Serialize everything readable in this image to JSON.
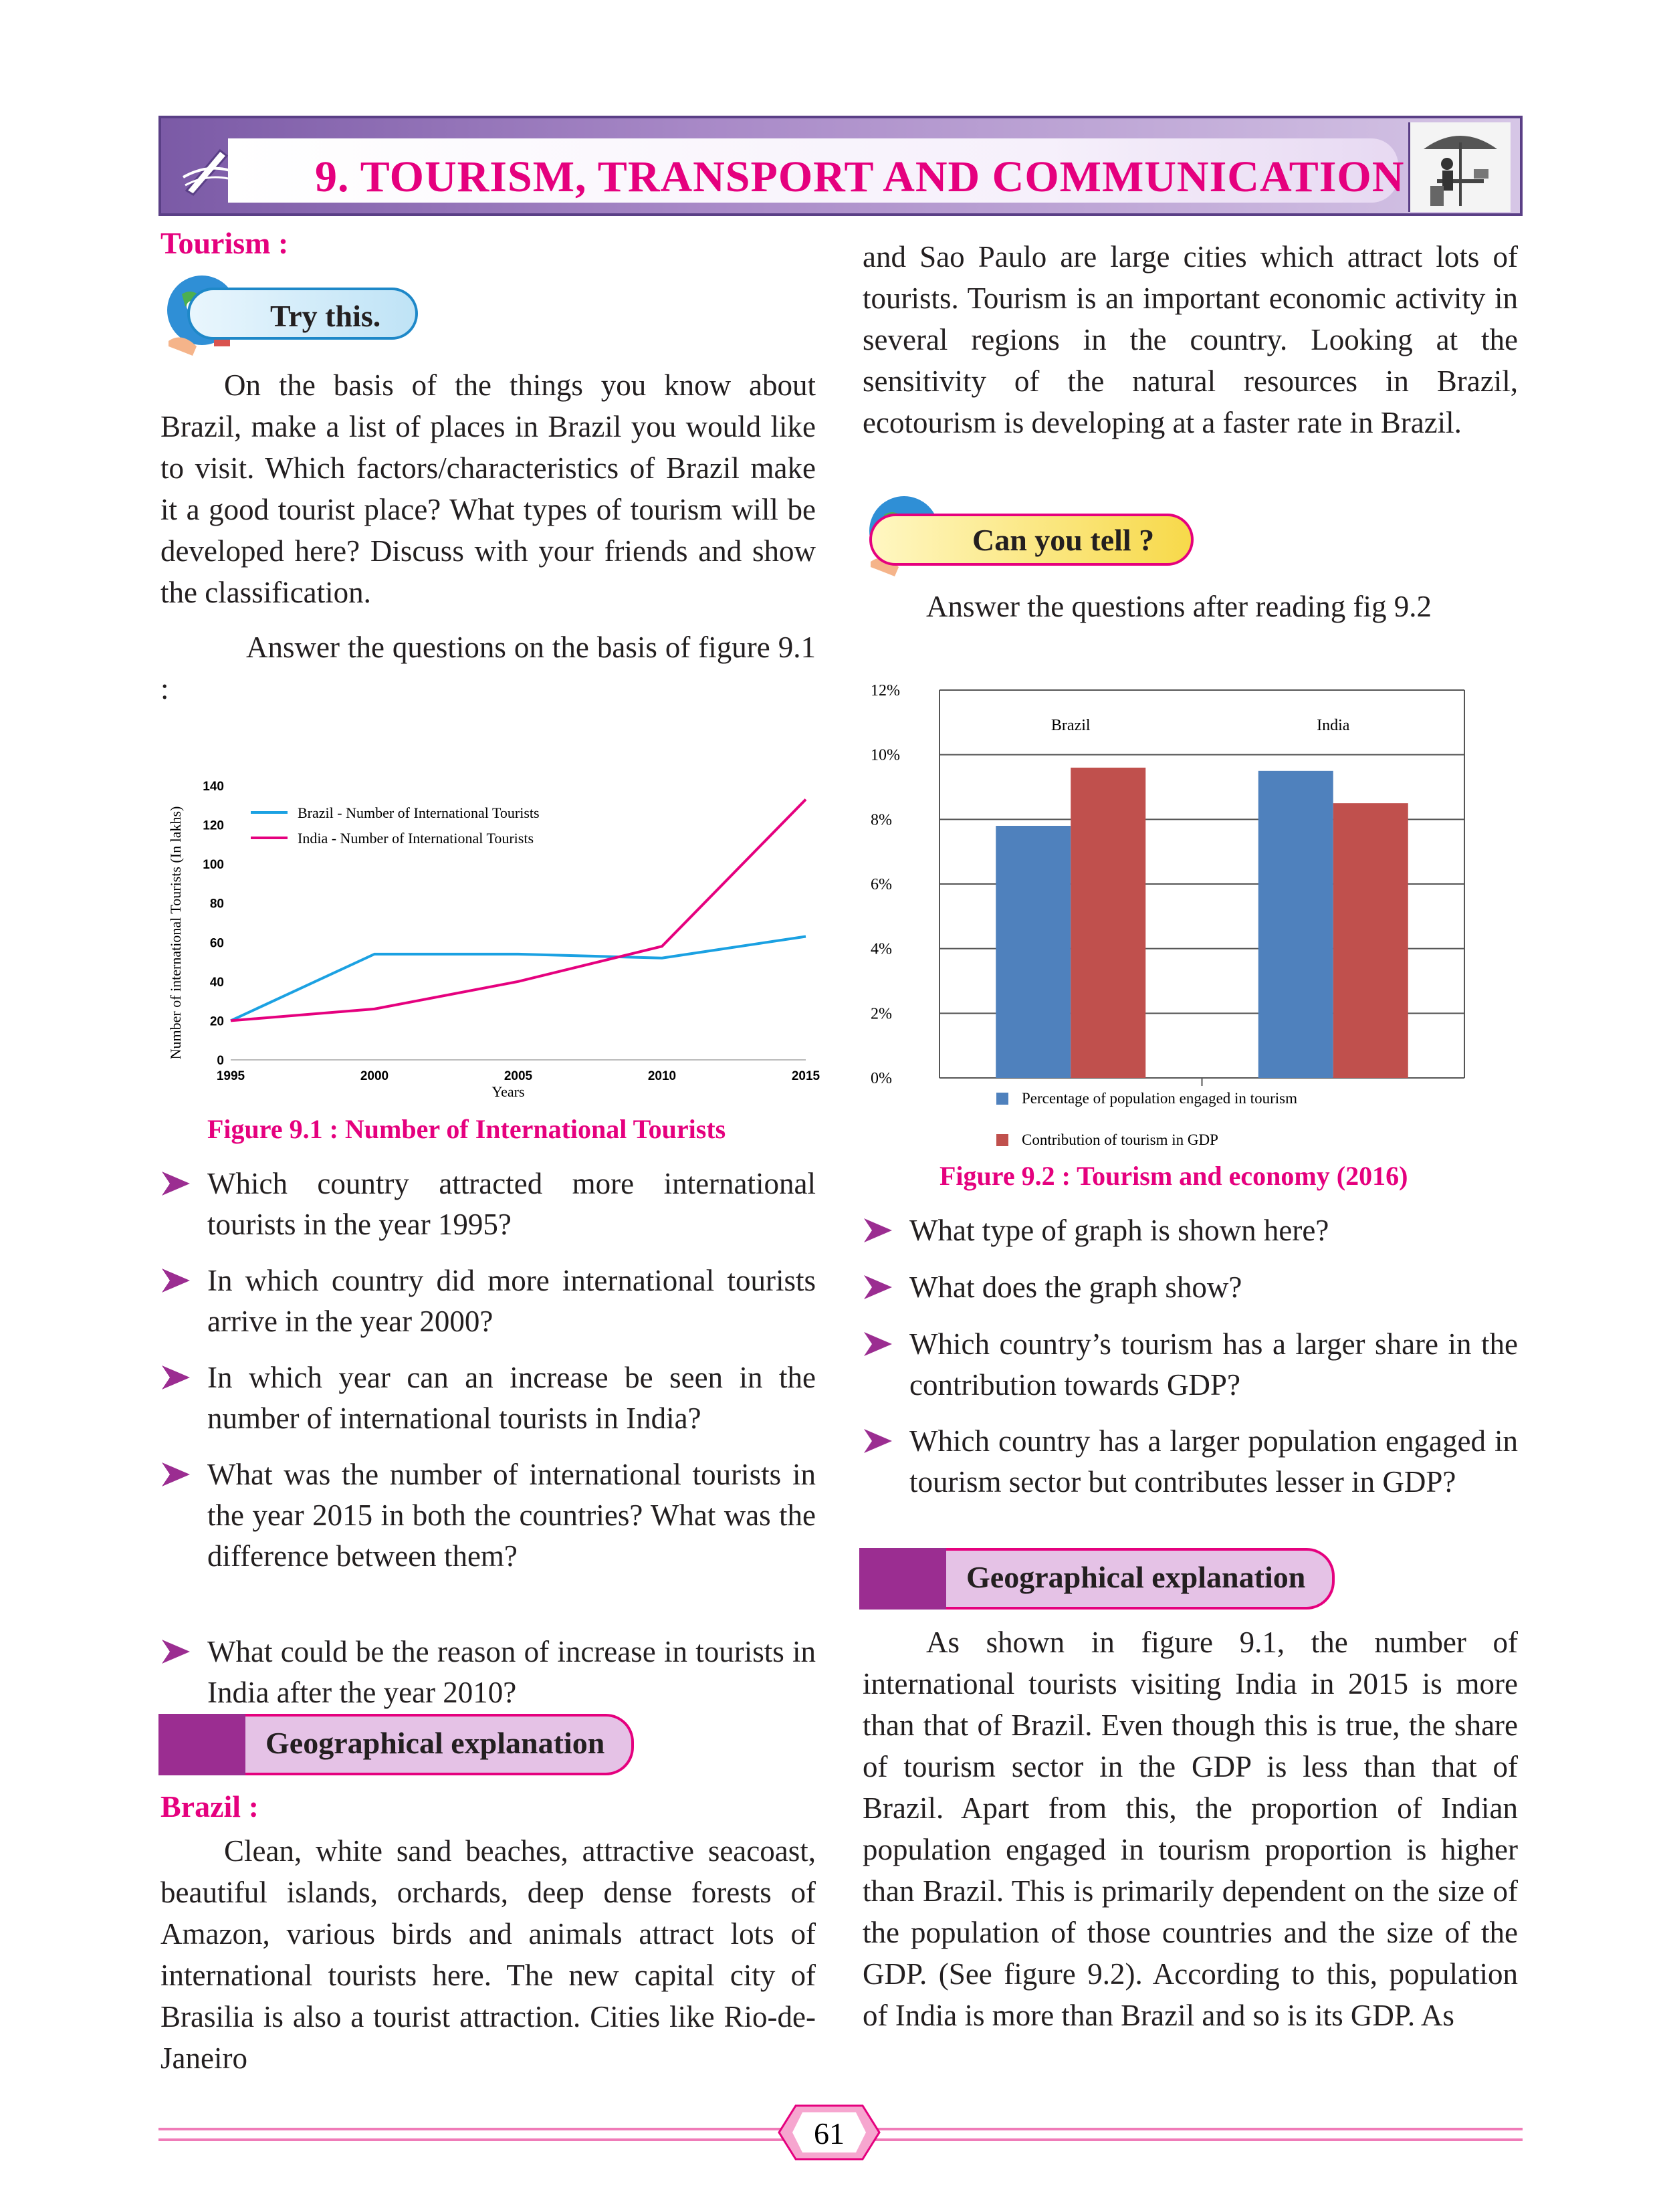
{
  "header": {
    "chapter_title": "9. TOURISM, TRANSPORT AND COMMUNICATION"
  },
  "left": {
    "tourism_heading": "Tourism :",
    "try_this": "Try this.",
    "try_para": "On the basis of the things you know about Brazil, make a list of places in Brazil you would like to visit. Which factors/characteristics of Brazil make it a good tourist place? What types of tourism will be developed here? Discuss with your friends and show the classification.",
    "answer_para": "Answer the questions on the basis of figure 9.1 :",
    "figure_caption": "Figure 9.1 : Number of International Tourists",
    "questions": [
      "Which country attracted more international tourists in the year 1995?",
      "In which country did more international tourists arrive in the year 2000?",
      "In which year can an increase be seen in the number of international tourists in India?",
      "What was the number of international tourists in the year 2015 in both the countries? What was the difference between them?",
      "What could be the reason of increase in tourists in India after the year 2010?"
    ],
    "geo_heading": "Geographical explanation",
    "brazil_heading": "Brazil :",
    "brazil_para": "Clean, white sand beaches, attractive seacoast, beautiful islands, orchards, deep dense forests of Amazon, various birds and animals attract lots of international tourists here. The new capital city of Brasilia is also a tourist attraction. Cities like Rio-de-Janeiro"
  },
  "right": {
    "cont_para": "and Sao Paulo are large cities which attract lots of tourists. Tourism is an important economic activity in several regions in the country. Looking at the sensitivity of the natural resources in Brazil, ecotourism is developing at a faster rate in Brazil.",
    "can_you_tell": "Can you tell ?",
    "answer_para": "Answer the questions after reading fig 9.2",
    "figure_caption": "Figure 9.2 : Tourism and economy (2016)",
    "questions": [
      "What type of graph is shown here?",
      "What does the graph show?",
      "Which country’s tourism has a larger share in the contribution towards GDP?",
      "Which country has a larger population engaged in tourism sector but contributes lesser in GDP?"
    ],
    "geo_heading": "Geographical explanation",
    "geo_para": "As shown in figure 9.1, the number of international tourists visiting India in 2015 is more than that of Brazil. Even though this is true, the share of tourism sector in the GDP is less than that of Brazil. Apart from this, the proportion of Indian population engaged in tourism proportion is higher than Brazil. This is primarily dependent on the size of the population of those countries and the size of the GDP. (See figure 9.2). According to this, population of India is more than Brazil and so is its GDP. As"
  },
  "footer": {
    "page_number": "61"
  },
  "colors": {
    "accent_pink": "#e5007e",
    "brazil_line": "#1ba1e2",
    "india_line": "#e5007e",
    "bar_blue": "#4f81bd",
    "bar_red": "#c0504d",
    "purple": "#9b2d91"
  },
  "chart_data": [
    {
      "type": "line",
      "xlabel": "Years",
      "ylabel": "Number of international Tourists (In lakhs)",
      "x": [
        1995,
        2000,
        2005,
        2010,
        2015
      ],
      "x_ticks": [
        "1995",
        "2000",
        "2005",
        "2010",
        "2015"
      ],
      "y_ticks": [
        "0",
        "20",
        "40",
        "60",
        "80",
        "100",
        "120",
        "140"
      ],
      "ylim": [
        0,
        140
      ],
      "legend_position": "top-left",
      "series": [
        {
          "name": "Brazil - Number of International Tourists",
          "color": "#1ba1e2",
          "values": [
            20,
            54,
            54,
            52,
            63
          ]
        },
        {
          "name": "India - Number of International Tourists",
          "color": "#e5007e",
          "values": [
            20,
            26,
            40,
            58,
            133
          ]
        }
      ]
    },
    {
      "type": "bar",
      "categories": [
        "Brazil",
        "India"
      ],
      "y_ticks": [
        "0%",
        "2%",
        "4%",
        "6%",
        "8%",
        "10%",
        "12%"
      ],
      "ylim": [
        0,
        12
      ],
      "grid": true,
      "legend_position": "bottom",
      "series": [
        {
          "name": "Percentage of population engaged in tourism",
          "color": "#4f81bd",
          "values": [
            7.8,
            9.5
          ]
        },
        {
          "name": "Contribution of tourism in GDP",
          "color": "#c0504d",
          "values": [
            9.6,
            8.5
          ]
        }
      ]
    }
  ]
}
